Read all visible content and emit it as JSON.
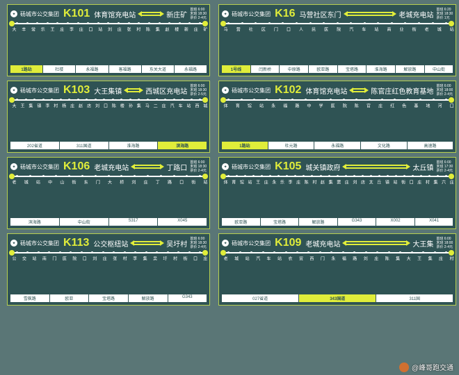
{
  "company": "砀城市公交集团",
  "colors": {
    "bg": "#5a7676",
    "card_bg": "#2f5354",
    "accent": "#e0ed3a",
    "border": "#b8d050",
    "text": "#ffffff",
    "road_bg": "#ffffff"
  },
  "watermark": "@峰哥跑交通",
  "cards": [
    {
      "route": "K101",
      "term_a": "体育馆充电站",
      "term_b": "新庄矿",
      "times": "首班 6:00\n末班 18:30\n票价 2-4元",
      "stops": [
        "大",
        "丰",
        "常",
        "乐",
        "王",
        "庄",
        "李",
        "庄",
        "口",
        "站",
        "刘",
        "庄",
        "张",
        "村",
        "陈",
        "集",
        "赵",
        "楼",
        "新",
        "庄",
        "矿"
      ],
      "roads": [
        {
          "t": "1路站",
          "hl": true
        },
        {
          "t": "杜楼"
        },
        {
          "t": "永福路"
        },
        {
          "t": "客福路"
        },
        {
          "t": "东关大道"
        },
        {
          "t": "永福路"
        }
      ]
    },
    {
      "route": "K16",
      "term_a": "马营社区东门",
      "term_b": "老城充电站",
      "times": "首班 6:20\n末班 18:30\n票价 1元",
      "stops": [
        "马",
        "营",
        "社",
        "区",
        "门",
        "口",
        "人",
        "民",
        "医",
        "院",
        "汽",
        "车",
        "站",
        "商",
        "业",
        "街",
        "老",
        "城",
        "站"
      ],
      "roads": [
        {
          "t": "1号线",
          "hl": true
        },
        {
          "t": "闫新桥"
        },
        {
          "t": "中原路"
        },
        {
          "t": "欧亚路"
        },
        {
          "t": "宝塔路"
        },
        {
          "t": "淮海路"
        },
        {
          "t": "解放路"
        },
        {
          "t": "中山街"
        }
      ]
    },
    {
      "route": "K103",
      "term_a": "大王集镇",
      "term_b": "西城区充电站",
      "times": "首班 6:00\n末班 18:30\n票价 2-5元",
      "stops": [
        "大",
        "王",
        "集",
        "镇",
        "李",
        "村",
        "杨",
        "庄",
        "赵",
        "店",
        "刘",
        "口",
        "陈",
        "楼",
        "孙",
        "集",
        "马",
        "二",
        "庄",
        "汽",
        "车",
        "站",
        "西",
        "城"
      ],
      "roads": [
        {
          "t": "202省道"
        },
        {
          "t": "311国道"
        },
        {
          "t": "淮海路"
        },
        {
          "t": "滨海路",
          "hl": true
        }
      ]
    },
    {
      "route": "K102",
      "term_a": "体育馆充电站",
      "term_b": "陈官庄红色教育基地",
      "times": "首班 6:00\n末班 18:00\n票价 2-4元",
      "stops": [
        "体",
        "育",
        "馆",
        "站",
        "永",
        "福",
        "路",
        "中",
        "学",
        "医",
        "院",
        "陈",
        "官",
        "庄",
        "红",
        "色",
        "基",
        "地",
        "河",
        "口"
      ],
      "roads": [
        {
          "t": "1路站",
          "hl": true
        },
        {
          "t": "杜元路"
        },
        {
          "t": "永福路"
        },
        {
          "t": "文化路"
        },
        {
          "t": "高速路"
        }
      ]
    },
    {
      "route": "K106",
      "term_a": "老城充电站",
      "term_b": "丁路口",
      "times": "首班 6:00\n末班 18:30\n票价 2-4元",
      "stops": [
        "老",
        "城",
        "站",
        "中",
        "山",
        "街",
        "东",
        "门",
        "大",
        "桥",
        "刘",
        "庄",
        "丁",
        "路",
        "口",
        "街",
        "站"
      ],
      "roads": [
        {
          "t": "滨海路"
        },
        {
          "t": "中山街"
        },
        {
          "t": "S317"
        },
        {
          "t": "X045"
        }
      ]
    },
    {
      "route": "K105",
      "term_a": "城关镇政府",
      "term_b": "太丘镇",
      "times": "首班 6:00\n末班 17:30\n票价 2-4元",
      "stops": [
        "体",
        "育",
        "馆",
        "站",
        "王",
        "庄",
        "永",
        "乐",
        "李",
        "庄",
        "陈",
        "村",
        "赵",
        "集",
        "窦",
        "庄",
        "刘",
        "店",
        "太",
        "丘",
        "镇",
        "站",
        "街",
        "口",
        "庄",
        "村",
        "集",
        "六",
        "庄"
      ],
      "roads": [
        {
          "t": "欧亚路"
        },
        {
          "t": "宝塔路"
        },
        {
          "t": "解放路"
        },
        {
          "t": "G343"
        },
        {
          "t": "X002"
        },
        {
          "t": "X041"
        }
      ]
    },
    {
      "route": "K113",
      "term_a": "公交枢纽站",
      "term_b": "吴圩村",
      "times": "首班 6:00\n末班 18:30\n票价 2-4元",
      "stops": [
        "公",
        "交",
        "站",
        "南",
        "门",
        "医",
        "院",
        "口",
        "刘",
        "庄",
        "张",
        "村",
        "李",
        "集",
        "吴",
        "圩",
        "村",
        "街",
        "口",
        "庄"
      ],
      "roads": [
        {
          "t": "雪枫路"
        },
        {
          "t": "欧亚"
        },
        {
          "t": "宝塔路"
        },
        {
          "t": "解放路"
        },
        {
          "t": "G343"
        }
      ]
    },
    {
      "route": "K109",
      "term_a": "老城充电站",
      "term_b": "大王集",
      "times": "首班 6:00\n末班 18:00\n票价 2-4元",
      "stops": [
        "老",
        "城",
        "站",
        "汽",
        "车",
        "站",
        "农",
        "贸",
        "西",
        "门",
        "永",
        "福",
        "路",
        "刘",
        "庄",
        "陈",
        "集",
        "大",
        "王",
        "集",
        "庄",
        "村"
      ],
      "roads": [
        {
          "t": "027省道"
        },
        {
          "t": "343国道",
          "hl": true
        },
        {
          "t": "311国"
        }
      ]
    }
  ]
}
